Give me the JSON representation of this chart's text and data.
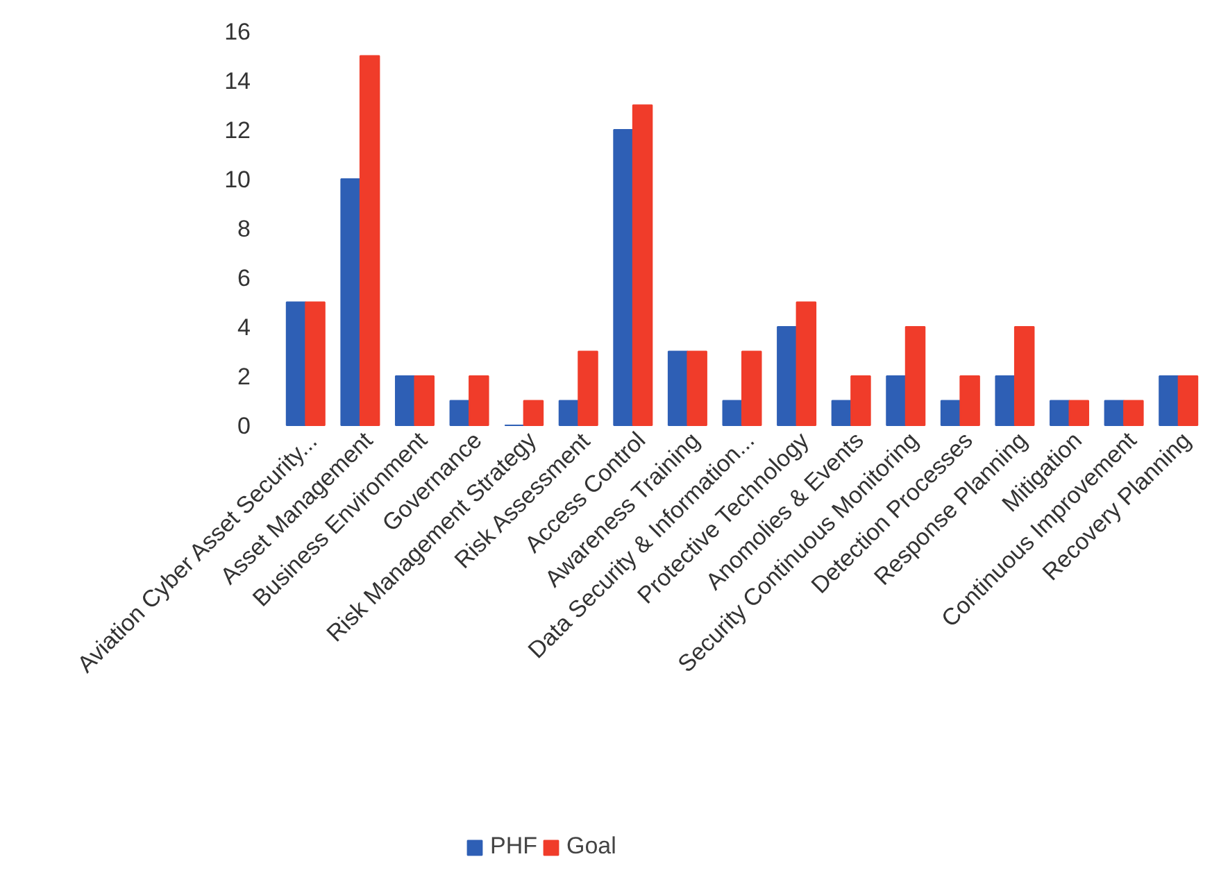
{
  "chart_data": {
    "type": "bar",
    "categories": [
      "Aviation Cyber Asset Security...",
      "Asset Management",
      "Business Environment",
      "Governance",
      "Risk Management Strategy",
      "Risk Assessment",
      "Access Control",
      "Awareness Training",
      "Data Security & Information...",
      "Protective Technology",
      "Anomolies & Events",
      "Security Continuous Monitoring",
      "Detection Processes",
      "Response Planning",
      "Mitigation",
      "Continuous Improvement",
      "Recovery Planning"
    ],
    "series": [
      {
        "name": "PHF",
        "color": "#2e5fb5",
        "values": [
          5,
          10,
          2,
          1,
          0,
          1,
          12,
          3,
          1,
          4,
          1,
          2,
          1,
          2,
          1,
          1,
          2
        ]
      },
      {
        "name": "Goal",
        "color": "#f03c2a",
        "values": [
          5,
          15,
          2,
          2,
          1,
          3,
          13,
          3,
          3,
          5,
          2,
          4,
          2,
          4,
          1,
          1,
          2
        ]
      }
    ],
    "ylim": [
      0,
      16
    ],
    "yticks": [
      0,
      2,
      4,
      6,
      8,
      10,
      12,
      14,
      16
    ],
    "grid": false,
    "legend": "bottom"
  }
}
